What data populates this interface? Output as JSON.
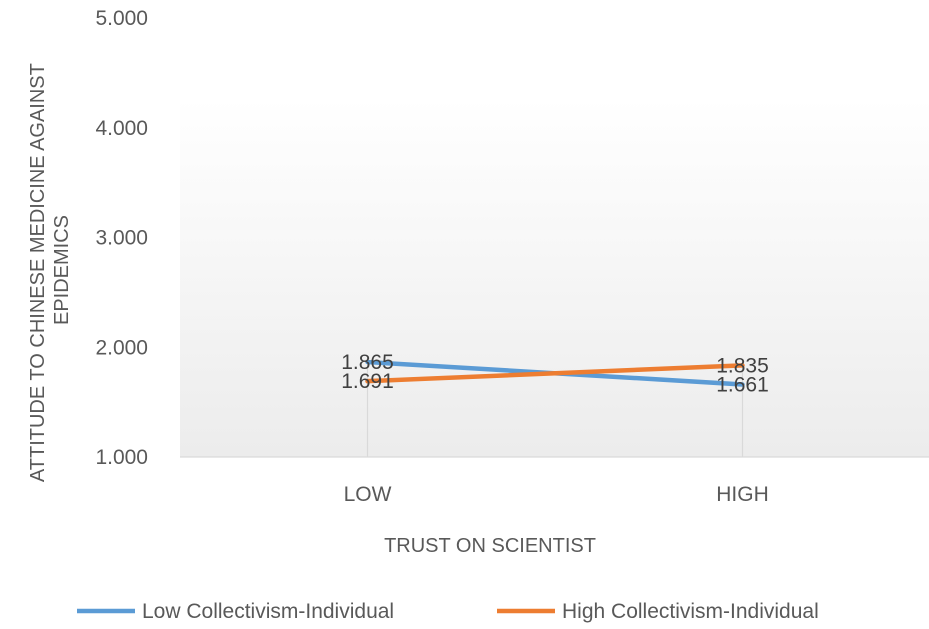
{
  "chart_data": {
    "type": "line",
    "categories": [
      "LOW",
      "HIGH"
    ],
    "series": [
      {
        "name": "Low Collectivism-Individual",
        "values": [
          1.865,
          1.661
        ],
        "labels": [
          "1.865",
          "1.661"
        ],
        "color": "#5B9BD5"
      },
      {
        "name": "High Collectivism-Individual",
        "values": [
          1.691,
          1.835
        ],
        "labels": [
          "1.691",
          "1.835"
        ],
        "color": "#ED7D31"
      }
    ],
    "xlabel": "TRUST ON SCIENTIST",
    "ylabel": [
      "ATTITUDE TO CHINESE MEDICINE AGAINST",
      "EPIDEMICS"
    ],
    "ylim": [
      1,
      5
    ],
    "yticks": [
      {
        "value": 1,
        "label": "1.000"
      },
      {
        "value": 2,
        "label": "2.000"
      },
      {
        "value": 3,
        "label": "3.000"
      },
      {
        "value": 4,
        "label": "4.000"
      },
      {
        "value": 5,
        "label": "5.000"
      }
    ],
    "legend_position": "bottom",
    "grid": false,
    "plot_background": "gradient-light-gray"
  }
}
